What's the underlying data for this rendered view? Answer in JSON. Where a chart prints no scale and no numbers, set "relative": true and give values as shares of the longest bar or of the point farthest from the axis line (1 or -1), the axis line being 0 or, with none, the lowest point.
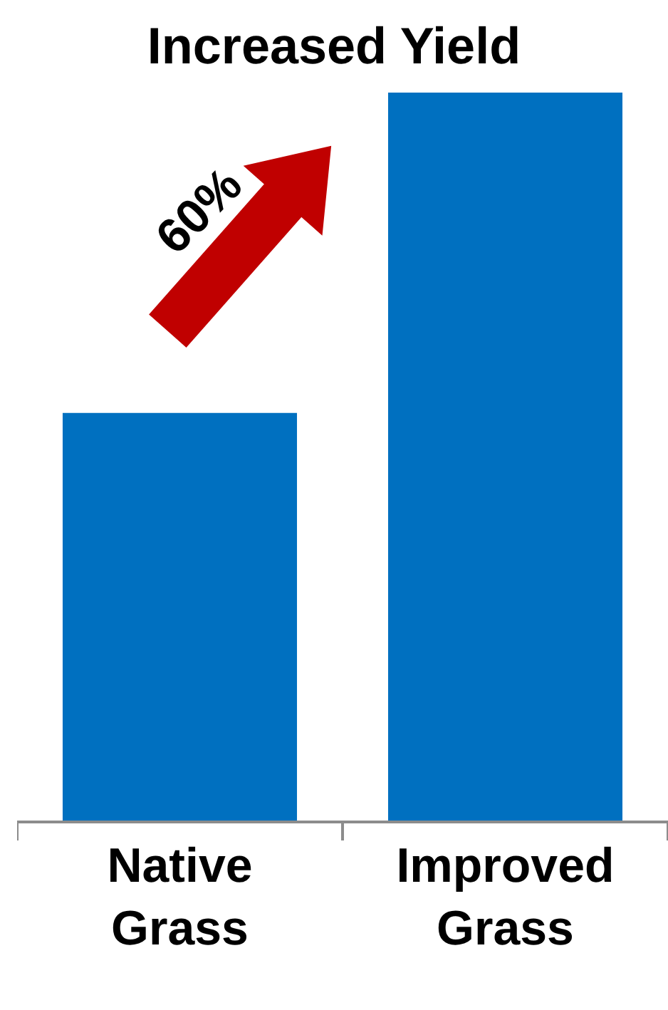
{
  "chart_data": {
    "type": "bar",
    "title": "Increased Yield",
    "relative": true,
    "categories": [
      "Native Grass",
      "Improved Grass"
    ],
    "values": [
      0.56,
      1
    ],
    "color": "#0070c0",
    "annotations": [
      "60%"
    ]
  }
}
